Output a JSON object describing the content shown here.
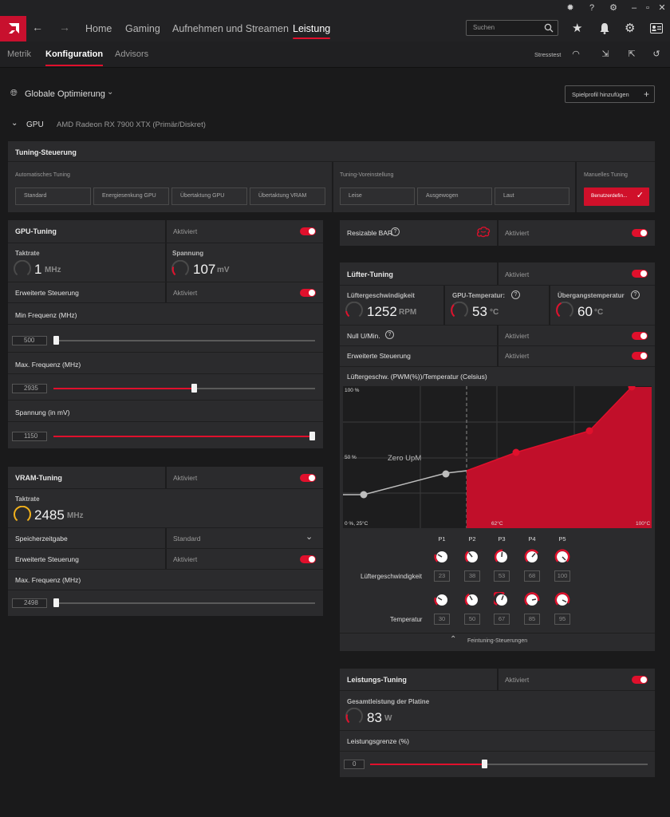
{
  "window": {
    "controls": [
      "bug-icon",
      "help-icon",
      "settings-icon",
      "minimize-icon",
      "maximize-icon",
      "close-icon"
    ]
  },
  "nav": {
    "items": [
      "Home",
      "Gaming",
      "Aufnehmen und Streamen",
      "Leistung"
    ],
    "active": "Leistung",
    "search_placeholder": "Suchen"
  },
  "subnav": {
    "tabs": [
      "Metrik",
      "Konfiguration",
      "Advisors"
    ],
    "active": "Konfiguration",
    "stresstest": "Stresstest"
  },
  "profile": {
    "label": "Globale Optimierung",
    "add_button": "Spielprofil hinzufügen"
  },
  "gpu": {
    "label": "GPU",
    "name": "AMD Radeon RX 7900 XTX (Primär/Diskret)"
  },
  "tuning_control": {
    "title": "Tuning-Steuerung",
    "auto_label": "Automatisches Tuning",
    "auto_buttons": [
      "Standard",
      "Energiesenkung GPU",
      "Übertaktung GPU",
      "Übertaktung VRAM"
    ],
    "preset_label": "Tuning-Voreinstellung",
    "preset_buttons": [
      "Leise",
      "Ausgewogen",
      "Laut"
    ],
    "manual_label": "Manuelles Tuning",
    "manual_button": "Benutzerdefin..."
  },
  "gpu_tuning": {
    "title": "GPU-Tuning",
    "status": "Aktiviert",
    "clock_label": "Taktrate",
    "clock_value": "1",
    "clock_unit": "MHz",
    "voltage_label": "Spannung",
    "voltage_value": "107",
    "voltage_unit": "mV",
    "advanced_label": "Erweiterte Steuerung",
    "advanced_status": "Aktiviert",
    "min_freq_label": "Min Frequenz (MHz)",
    "min_freq_value": "500",
    "min_freq_fraction": 0.0,
    "max_freq_label": "Max. Frequenz (MHz)",
    "max_freq_value": "2935",
    "max_freq_fraction": 0.54,
    "voltage_mv_label": "Spannung (in mV)",
    "voltage_mv_value": "1150",
    "voltage_mv_fraction": 1.0
  },
  "vram_tuning": {
    "title": "VRAM-Tuning",
    "status": "Aktiviert",
    "clock_label": "Taktrate",
    "clock_value": "2485",
    "clock_unit": "MHz",
    "timing_label": "Speicherzeitgabe",
    "timing_value": "Standard",
    "advanced_label": "Erweiterte Steuerung",
    "advanced_status": "Aktiviert",
    "max_freq_label": "Max. Frequenz (MHz)",
    "max_freq_value": "2498",
    "max_freq_fraction": 0.0
  },
  "resizable_bar": {
    "label": "Resizable BAR",
    "status": "Aktiviert"
  },
  "fan_tuning": {
    "title": "Lüfter-Tuning",
    "status": "Aktiviert",
    "fan_speed_label": "Lüftergeschwindigkeit",
    "fan_speed_value": "1252",
    "fan_speed_unit": "RPM",
    "gpu_temp_label": "GPU-Temperatur:",
    "gpu_temp_value": "53",
    "gpu_temp_unit": "°C",
    "junction_temp_label": "Übergangstemperatur",
    "junction_temp_value": "60",
    "junction_temp_unit": "°C",
    "zero_rpm_label": "Null U/Min.",
    "zero_rpm_status": "Aktiviert",
    "advanced_label": "Erweiterte Steuerung",
    "advanced_status": "Aktiviert",
    "curve_title": "Lüftergeschw. (PWM(%))/Temperatur (Celsius)",
    "curve_zero_label": "Zero UpM",
    "axis_100": "100 %",
    "axis_50": "50 %",
    "axis_origin": "0 %, 25°C",
    "axis_62": "62°C",
    "axis_100c": "100°C",
    "points_labels": [
      "P1",
      "P2",
      "P3",
      "P4",
      "P5"
    ],
    "speed_row_label": "Lüftergeschwindigkeit",
    "speed_values": [
      "23",
      "38",
      "53",
      "68",
      "100"
    ],
    "temp_row_label": "Temperatur",
    "temp_values": [
      "30",
      "50",
      "67",
      "85",
      "95"
    ],
    "fine_tuning": "Feintuning-Steuerungen"
  },
  "power_tuning": {
    "title": "Leistungs-Tuning",
    "status": "Aktiviert",
    "board_power_label": "Gesamtleistung der Platine",
    "board_power_value": "83",
    "board_power_unit": "W",
    "limit_label": "Leistungsgrenze (%)",
    "limit_value": "0",
    "limit_fraction": 0.41
  },
  "colors": {
    "accent": "#e0102c",
    "panel": "#2b2b2d",
    "background": "#1a1a1b",
    "gauge_yellow": "#f0b01c"
  }
}
